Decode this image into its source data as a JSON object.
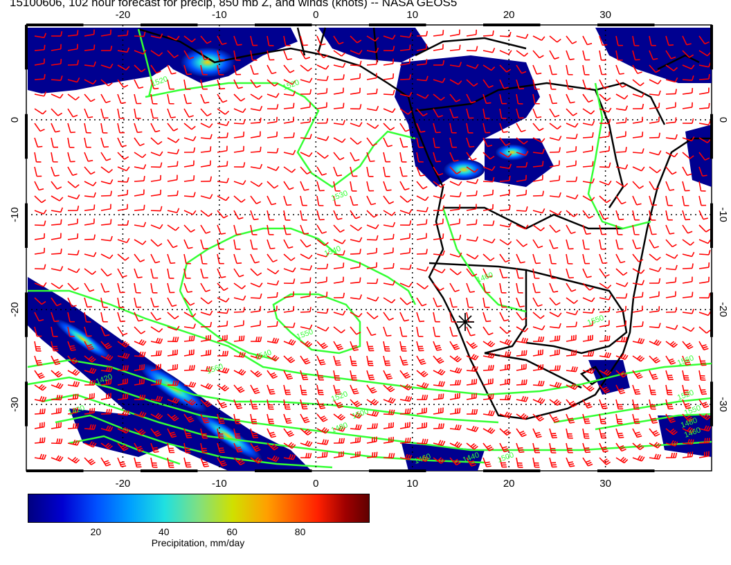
{
  "title": "15100606, 102 hour forecast for precip, 850 mb Z, and winds (knots) -- NASA GEOS5",
  "map": {
    "lon_range": [
      -30,
      41
    ],
    "lat_range": [
      -37,
      10
    ],
    "lon_ticks": [
      "-20",
      "-10",
      "0",
      "10",
      "20",
      "30"
    ],
    "lat_ticks": [
      "0",
      "-10",
      "-20",
      "-30"
    ],
    "gridlines": "dotted",
    "colors": {
      "wind_barbs": "#ff0000",
      "contours": "#33ff33",
      "coastlines": "#000000",
      "precip_low": "#000080",
      "precip_high": "#800000"
    },
    "contour_labels": [
      "1520",
      "1520",
      "1530",
      "1540",
      "1550",
      "1540",
      "1560",
      "1520",
      "1500",
      "1480",
      "1460",
      "1440",
      "1420",
      "1420",
      "1460",
      "1550",
      "1560",
      "1520",
      "1550",
      "1480",
      "1460",
      "1500"
    ],
    "marker": "asterisk-marker"
  },
  "colorbar": {
    "range": [
      0,
      100
    ],
    "ticks": [
      "20",
      "40",
      "60",
      "80"
    ],
    "tick_values": [
      20,
      40,
      60,
      80
    ],
    "label": "Precipitation, mm/day"
  }
}
